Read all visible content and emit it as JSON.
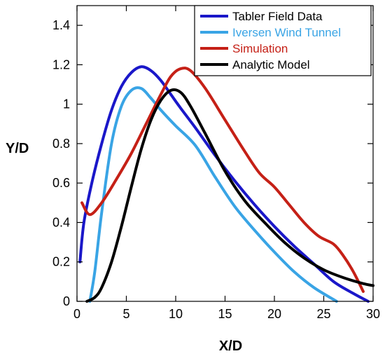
{
  "chart_data": {
    "type": "line",
    "title": "",
    "xlabel": "X/D",
    "ylabel": "Y/D",
    "xlim": [
      0,
      30
    ],
    "ylim": [
      0,
      1.5
    ],
    "x_ticks": [
      "0",
      "5",
      "10",
      "15",
      "20",
      "25",
      "30"
    ],
    "y_ticks": [
      "0",
      "0.2",
      "0.4",
      "0.6",
      "0.8",
      "1",
      "1.2",
      "1.4"
    ],
    "legend_position": "top-right",
    "grid": false,
    "series": [
      {
        "name": "Tabler Field Data",
        "color": "#1a17c9",
        "text_color": "#000000",
        "x": [
          0.3,
          0.7,
          1.5,
          2.5,
          3.5,
          4.5,
          5.5,
          6.5,
          7.5,
          8.5,
          9.5,
          10.5,
          12,
          14,
          16,
          18,
          20,
          22,
          24,
          26,
          28,
          29.5
        ],
        "y": [
          0.2,
          0.4,
          0.6,
          0.8,
          0.97,
          1.09,
          1.16,
          1.19,
          1.17,
          1.12,
          1.05,
          0.98,
          0.88,
          0.74,
          0.61,
          0.49,
          0.38,
          0.28,
          0.19,
          0.1,
          0.04,
          0.0
        ]
      },
      {
        "name": "Iversen Wind Tunnel",
        "color": "#39a4e5",
        "text_color": "#39a4e5",
        "x": [
          1.3,
          1.8,
          2.5,
          3.5,
          4.5,
          5.5,
          6.5,
          7.5,
          8.5,
          10,
          12,
          14,
          16,
          18,
          20,
          22,
          24,
          26.3
        ],
        "y": [
          0.0,
          0.15,
          0.45,
          0.8,
          0.99,
          1.07,
          1.08,
          1.03,
          0.97,
          0.89,
          0.79,
          0.63,
          0.48,
          0.36,
          0.25,
          0.15,
          0.07,
          0.0
        ]
      },
      {
        "name": "Simulation",
        "color": "#c52016",
        "text_color": "#c52016",
        "x": [
          0.5,
          1.3,
          2.5,
          4,
          5.5,
          7,
          8.5,
          9.5,
          10.5,
          11.5,
          13,
          15,
          17,
          18.5,
          20,
          21.5,
          23,
          24.5,
          26,
          27,
          28,
          29
        ],
        "y": [
          0.5,
          0.44,
          0.5,
          0.62,
          0.75,
          0.9,
          1.05,
          1.14,
          1.18,
          1.17,
          1.08,
          0.92,
          0.76,
          0.65,
          0.58,
          0.49,
          0.4,
          0.33,
          0.29,
          0.23,
          0.15,
          0.05
        ]
      },
      {
        "name": "Analytic Model",
        "color": "#000000",
        "text_color": "#000000",
        "x": [
          1.0,
          1.8,
          2.5,
          3.5,
          4.5,
          5.5,
          6.5,
          7.5,
          8.5,
          9.5,
          10.5,
          11.5,
          13,
          15,
          17,
          19,
          21,
          23,
          25,
          27,
          29,
          30
        ],
        "y": [
          0.0,
          0.02,
          0.07,
          0.2,
          0.38,
          0.58,
          0.77,
          0.92,
          1.02,
          1.07,
          1.06,
          0.99,
          0.85,
          0.66,
          0.51,
          0.4,
          0.3,
          0.22,
          0.16,
          0.12,
          0.09,
          0.08
        ]
      }
    ]
  }
}
